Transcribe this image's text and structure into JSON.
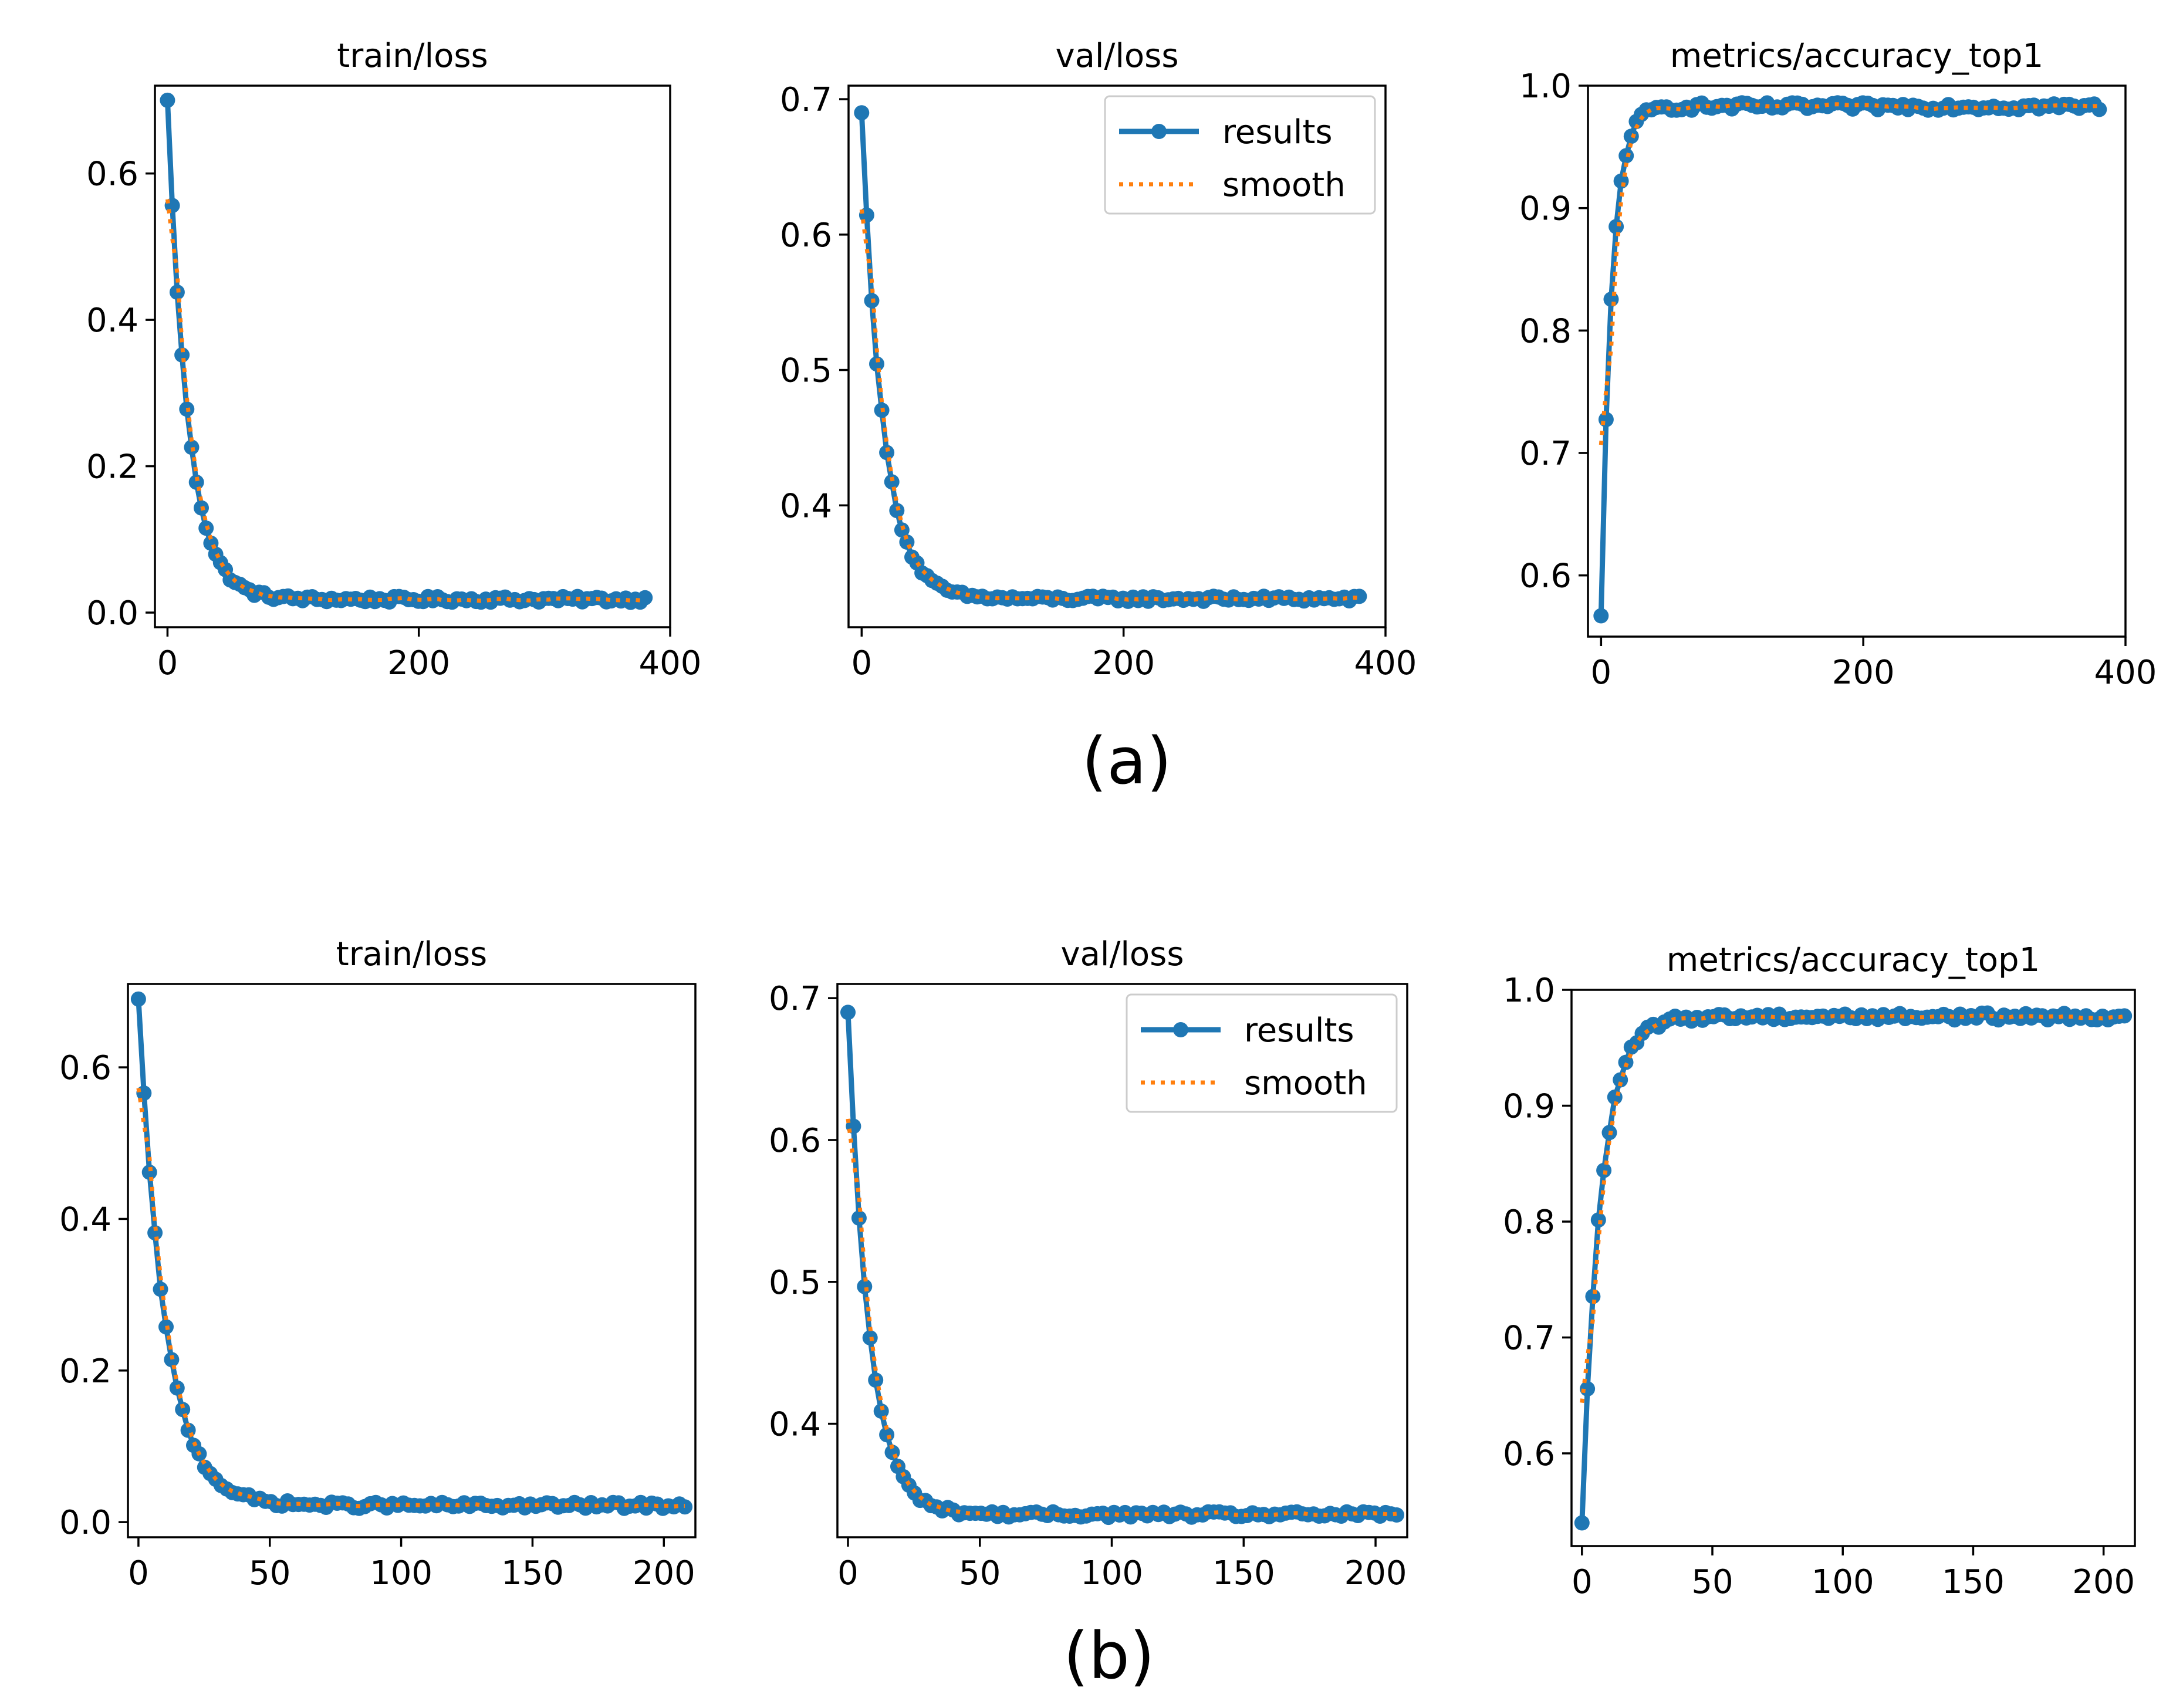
{
  "figure": {
    "row_labels": [
      "(a)",
      "(b)"
    ]
  },
  "colors": {
    "results": "#1f77b4",
    "smooth": "#ff7f0e",
    "axes": "#000000",
    "legend_border": "#cccccc"
  },
  "legend": {
    "results_label": "results",
    "smooth_label": "smooth"
  },
  "chart_data": [
    {
      "type": "line",
      "row": "(a)",
      "title": "train/loss",
      "xlim": [
        -10,
        400
      ],
      "ylim": [
        -0.02,
        0.72
      ],
      "xticks": [
        0,
        200,
        400
      ],
      "yticks": [
        0.0,
        0.2,
        0.4,
        0.6
      ],
      "ytick_decimals": 1,
      "legend": false,
      "series": [
        {
          "name": "results",
          "curve": "decay",
          "n_points": 100,
          "x_end": 380,
          "start": 0.7,
          "end": 0.018,
          "tau": 16,
          "noise": 0.004
        }
      ]
    },
    {
      "type": "line",
      "row": "(a)",
      "title": "val/loss",
      "xlim": [
        -10,
        400
      ],
      "ylim": [
        0.31,
        0.71
      ],
      "xticks": [
        0,
        200,
        400
      ],
      "yticks": [
        0.4,
        0.5,
        0.6,
        0.7
      ],
      "ytick_decimals": 1,
      "legend": true,
      "legend_position": "upper-right",
      "series": [
        {
          "name": "results",
          "curve": "decay",
          "n_points": 100,
          "x_end": 380,
          "start": 0.69,
          "end": 0.331,
          "tau": 16,
          "noise": 0.002
        }
      ]
    },
    {
      "type": "line",
      "row": "(a)",
      "title": "metrics/accuracy_top1",
      "xlim": [
        -10,
        400
      ],
      "ylim": [
        0.55,
        1.0
      ],
      "xticks": [
        0,
        200,
        400
      ],
      "yticks": [
        0.6,
        0.7,
        0.8,
        0.9,
        1.0
      ],
      "ytick_decimals": 1,
      "legend": false,
      "series": [
        {
          "name": "results",
          "curve": "rise",
          "n_points": 100,
          "x_end": 380,
          "start": 0.567,
          "end": 0.983,
          "tau": 8,
          "noise": 0.003
        }
      ]
    },
    {
      "type": "line",
      "row": "(b)",
      "title": "train/loss",
      "xlim": [
        -4,
        212
      ],
      "ylim": [
        -0.02,
        0.71
      ],
      "xticks": [
        0,
        50,
        100,
        150,
        200
      ],
      "yticks": [
        0.0,
        0.2,
        0.4,
        0.6
      ],
      "ytick_decimals": 1,
      "legend": false,
      "series": [
        {
          "name": "results",
          "curve": "decay",
          "n_points": 100,
          "x_end": 208,
          "start": 0.69,
          "end": 0.022,
          "tau": 10,
          "noise": 0.004
        }
      ]
    },
    {
      "type": "line",
      "row": "(b)",
      "title": "val/loss",
      "xlim": [
        -4,
        212
      ],
      "ylim": [
        0.32,
        0.71
      ],
      "xticks": [
        0,
        50,
        100,
        150,
        200
      ],
      "yticks": [
        0.4,
        0.5,
        0.6,
        0.7
      ],
      "ytick_decimals": 1,
      "legend": true,
      "legend_position": "upper-right",
      "series": [
        {
          "name": "results",
          "curve": "decay",
          "n_points": 100,
          "x_end": 208,
          "start": 0.69,
          "end": 0.336,
          "tau": 8,
          "noise": 0.002
        }
      ]
    },
    {
      "type": "line",
      "row": "(b)",
      "title": "metrics/accuracy_top1",
      "xlim": [
        -4,
        212
      ],
      "ylim": [
        0.52,
        1.0
      ],
      "xticks": [
        0,
        50,
        100,
        150,
        200
      ],
      "yticks": [
        0.6,
        0.7,
        0.8,
        0.9,
        1.0
      ],
      "ytick_decimals": 1,
      "legend": false,
      "series": [
        {
          "name": "results",
          "curve": "rise",
          "n_points": 100,
          "x_end": 208,
          "start": 0.54,
          "end": 0.977,
          "tau": 7,
          "noise": 0.003
        }
      ]
    }
  ]
}
